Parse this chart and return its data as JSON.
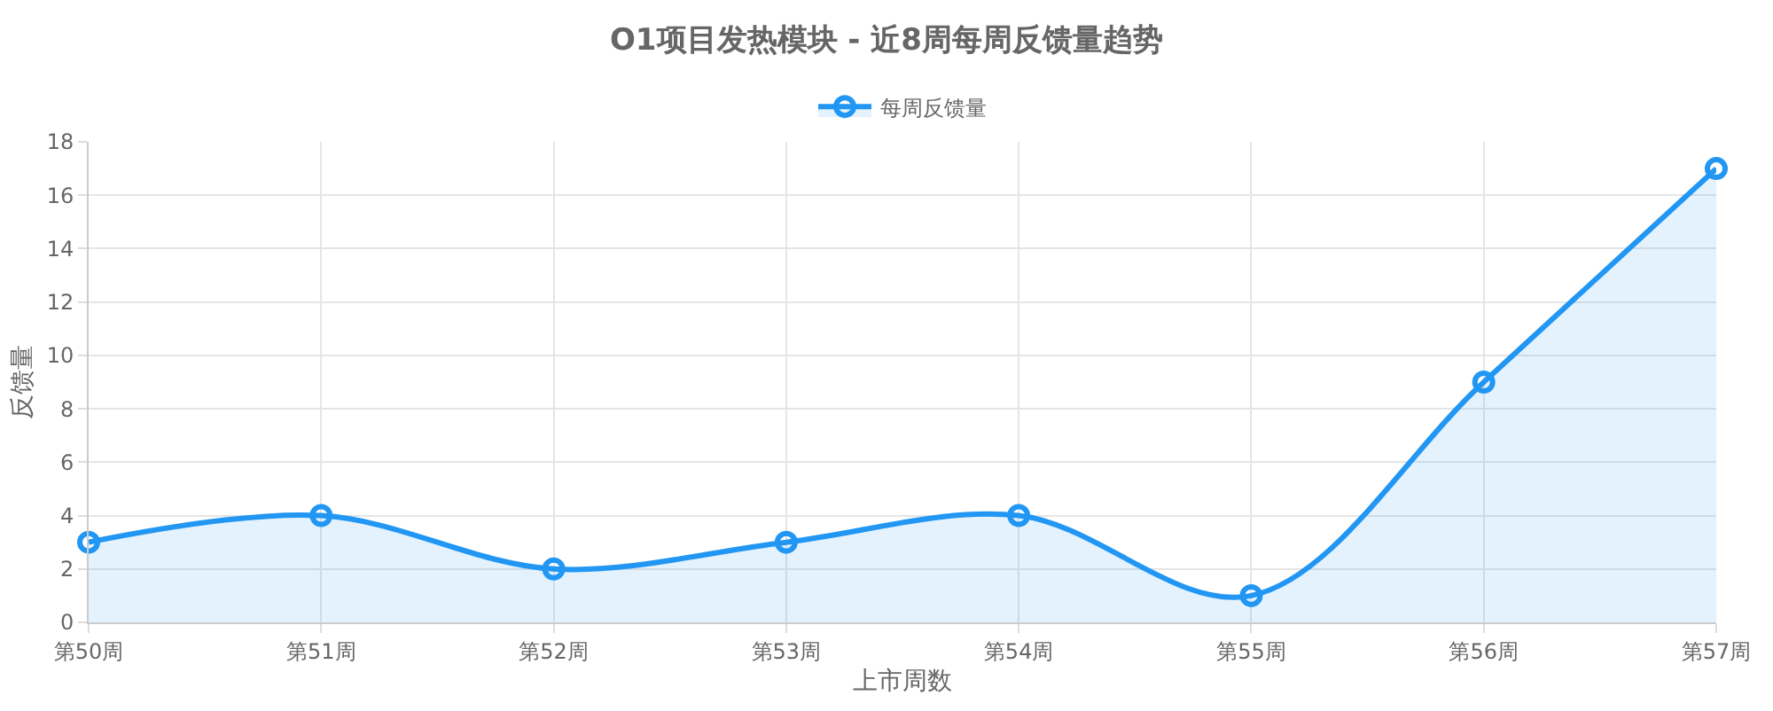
{
  "chart_data": {
    "type": "area",
    "title": "O1项目发热模块 - 近8周每周反馈量趋势",
    "xlabel": "上市周数",
    "ylabel": "反馈量",
    "categories": [
      "第50周",
      "第51周",
      "第52周",
      "第53周",
      "第54周",
      "第55周",
      "第56周",
      "第57周"
    ],
    "series": [
      {
        "name": "每周反馈量",
        "color": "#2196f3",
        "values": [
          3,
          4,
          2,
          3,
          4,
          1,
          9,
          17
        ]
      }
    ],
    "ylim": [
      0,
      18
    ],
    "yticks": [
      0,
      2,
      4,
      6,
      8,
      10,
      12,
      14,
      16,
      18
    ],
    "grid": true,
    "legend": "top",
    "marker": "circle",
    "line_style": "solid"
  }
}
